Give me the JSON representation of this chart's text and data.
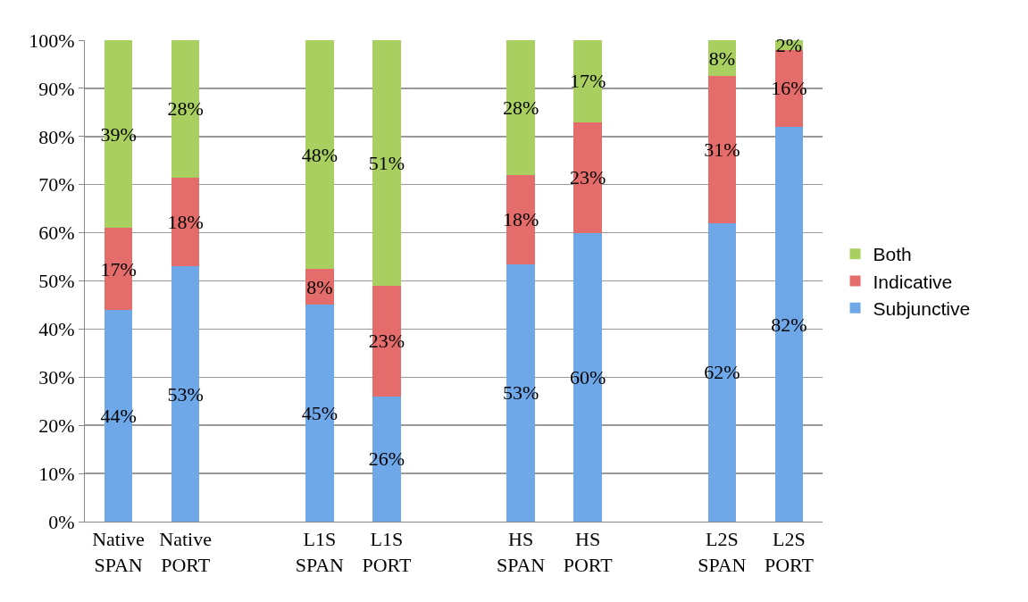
{
  "chart_data": {
    "type": "bar",
    "stacked": true,
    "grid": "y",
    "legend": "right",
    "categories": [
      "Native\nSPAN",
      "Native\nPORT",
      null,
      "L1S\nSPAN",
      "L1S\nPORT",
      null,
      "HS\nSPAN",
      "HS\nPORT",
      null,
      "L2S\nSPAN",
      "L2S\nPORT"
    ],
    "series": [
      {
        "name": "Subjunctive",
        "color": "#6fa8e8",
        "values": [
          44,
          53,
          null,
          45,
          26,
          null,
          53.5,
          60,
          null,
          62,
          82
        ],
        "value_labels": [
          "44%",
          "53%",
          null,
          "45%",
          "26%",
          null,
          "53%",
          "60%",
          null,
          "62%",
          "82%"
        ]
      },
      {
        "name": "Indicative",
        "color": "#e46c6a",
        "values": [
          17,
          18.5,
          null,
          7.5,
          23,
          null,
          18.5,
          23,
          null,
          30.5,
          16
        ],
        "value_labels": [
          "17%",
          "18%",
          null,
          "8%",
          "23%",
          null,
          "18%",
          "23%",
          null,
          "31%",
          "16%"
        ]
      },
      {
        "name": "Both",
        "color": "#a8cf5f",
        "values": [
          39,
          28.5,
          null,
          47.5,
          51,
          null,
          28,
          17,
          null,
          7.5,
          2
        ],
        "value_labels": [
          "39%",
          "28%",
          null,
          "48%",
          "51%",
          null,
          "28%",
          "17%",
          null,
          "8%",
          "2%"
        ]
      }
    ],
    "ylim": [
      0,
      100
    ],
    "yticks": [
      {
        "value": 0,
        "label": "0%"
      },
      {
        "value": 10,
        "label": "10%"
      },
      {
        "value": 20,
        "label": "20%"
      },
      {
        "value": 30,
        "label": "30%"
      },
      {
        "value": 40,
        "label": "40%"
      },
      {
        "value": 50,
        "label": "50%"
      },
      {
        "value": 60,
        "label": "60%"
      },
      {
        "value": 70,
        "label": "70%"
      },
      {
        "value": 80,
        "label": "80%"
      },
      {
        "value": 90,
        "label": "90%"
      },
      {
        "value": 100,
        "label": "100%"
      }
    ]
  }
}
